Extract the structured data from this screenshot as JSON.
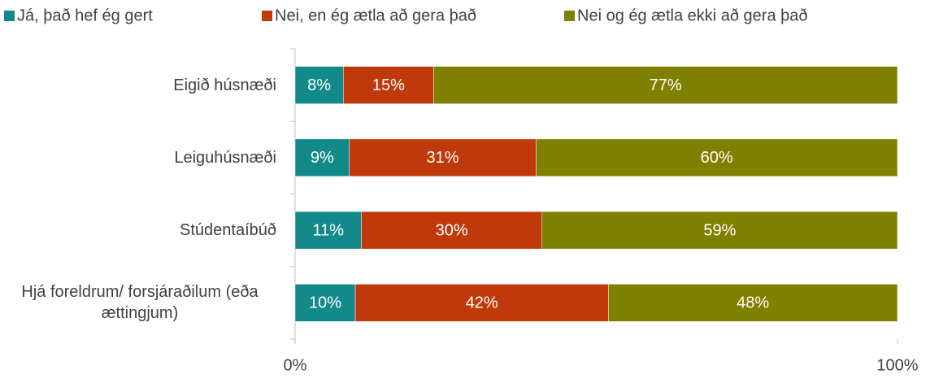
{
  "chart_data": {
    "type": "stacked-bar-horizontal",
    "categories": [
      "Eigið húsnæði",
      "Leiguhúsnæði",
      "Stúdentaíbúð",
      "Hjá foreldrum/ forsjáraðilum (eða ættingjum)"
    ],
    "series": [
      {
        "name": "Já, það hef ég gert",
        "color": "#138a8a",
        "values": [
          8,
          9,
          11,
          10
        ],
        "value_labels": [
          "8%",
          "9%",
          "11%",
          "10%"
        ]
      },
      {
        "name": "Nei, en ég ætla að gera það",
        "color": "#c0390a",
        "values": [
          15,
          31,
          30,
          42
        ],
        "value_labels": [
          "15%",
          "31%",
          "30%",
          "42%"
        ]
      },
      {
        "name": "Nei og ég ætla ekki að gera það",
        "color": "#7f7f00",
        "values": [
          77,
          60,
          59,
          48
        ],
        "value_labels": [
          "77%",
          "60%",
          "59%",
          "48%"
        ]
      }
    ],
    "xlim": [
      0,
      100
    ],
    "xticks": [
      {
        "value": 0,
        "label": "0%"
      },
      {
        "value": 100,
        "label": "100%"
      }
    ],
    "legend": "top"
  }
}
